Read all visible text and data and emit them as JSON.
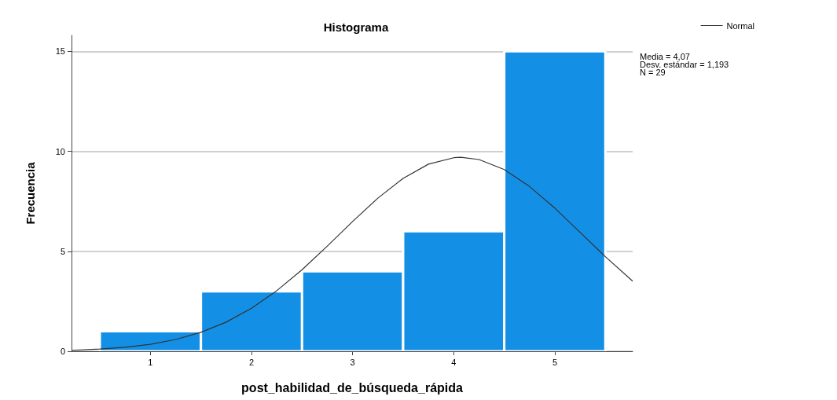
{
  "chart_data": {
    "type": "histogram",
    "title": "Histograma",
    "xlabel": "post_habilidad_de_búsqueda_rápida",
    "ylabel": "Frecuencia",
    "bins": [
      0.5,
      1.5,
      2.5,
      3.5,
      4.5,
      5.5
    ],
    "series": [
      {
        "color": "#1390e6",
        "values": [
          1,
          3,
          4,
          6,
          15
        ]
      },
      {
        "type": "line",
        "name": "Normal",
        "color": "#333333",
        "marker": "none",
        "x": [
          0.22,
          0.5,
          0.75,
          1.0,
          1.25,
          1.5,
          1.75,
          2.0,
          2.25,
          2.5,
          2.75,
          3.0,
          3.25,
          3.5,
          3.75,
          4.0,
          4.07,
          4.25,
          4.5,
          4.75,
          5.0,
          5.25,
          5.5,
          5.77
        ],
        "values": [
          0.05,
          0.11,
          0.2,
          0.35,
          0.59,
          0.95,
          1.46,
          2.15,
          3.03,
          4.08,
          5.26,
          6.49,
          7.66,
          8.65,
          9.36,
          9.68,
          9.7,
          9.59,
          9.09,
          8.24,
          7.16,
          5.95,
          4.73,
          3.51
        ]
      }
    ],
    "xlim": [
      0.22,
      5.77
    ],
    "xticks": [
      1,
      2,
      3,
      4,
      5
    ],
    "ylim": [
      0,
      15.8
    ],
    "yticks": [
      0,
      5,
      10,
      15
    ],
    "grid": "y",
    "legend": "top right",
    "annotations": [
      "Media = 4,07",
      "Desv. estándar = 1,193",
      "N = 29"
    ]
  }
}
